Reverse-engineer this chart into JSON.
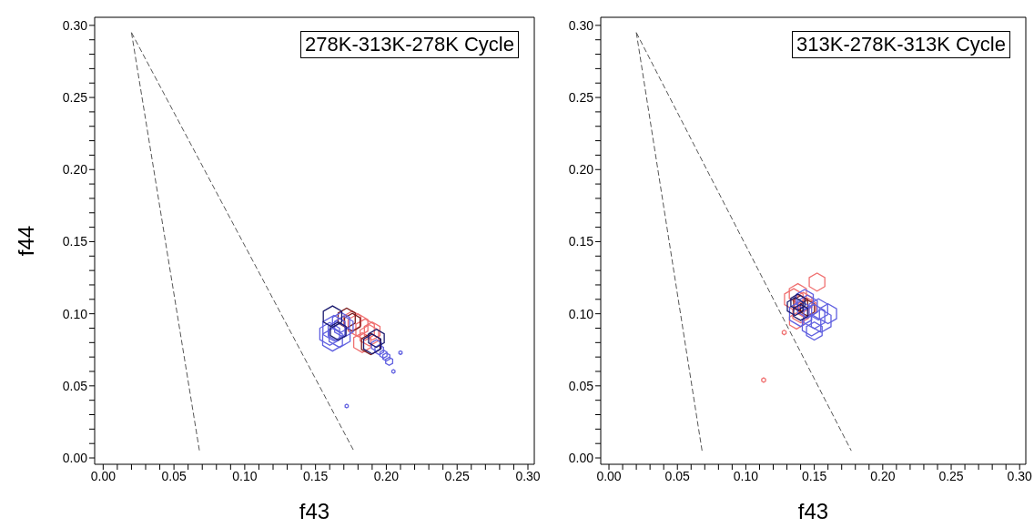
{
  "chart_data": [
    {
      "type": "bubble",
      "xlabel": "f43",
      "ylabel": "f44",
      "annotations": [
        "278K-313K-278K Cycle"
      ],
      "xlim": [
        -0.006,
        0.3045
      ],
      "ylim": [
        -0.0044,
        0.3056
      ],
      "xticks": [
        {
          "value": 0,
          "label": "0.00"
        },
        {
          "value": 0.01,
          "label": null
        },
        {
          "value": 0.02,
          "label": null
        },
        {
          "value": 0.03,
          "label": null
        },
        {
          "value": 0.04,
          "label": null
        },
        {
          "value": 0.05,
          "label": "0.05"
        },
        {
          "value": 0.06,
          "label": null
        },
        {
          "value": 0.07,
          "label": null
        },
        {
          "value": 0.08,
          "label": null
        },
        {
          "value": 0.09,
          "label": null
        },
        {
          "value": 0.1,
          "label": "0.10"
        },
        {
          "value": 0.11,
          "label": null
        },
        {
          "value": 0.12,
          "label": null
        },
        {
          "value": 0.13,
          "label": null
        },
        {
          "value": 0.14,
          "label": null
        },
        {
          "value": 0.15,
          "label": "0.15"
        },
        {
          "value": 0.16,
          "label": null
        },
        {
          "value": 0.17,
          "label": null
        },
        {
          "value": 0.18,
          "label": null
        },
        {
          "value": 0.19,
          "label": null
        },
        {
          "value": 0.2,
          "label": "0.20"
        },
        {
          "value": 0.21,
          "label": null
        },
        {
          "value": 0.22,
          "label": null
        },
        {
          "value": 0.23,
          "label": null
        },
        {
          "value": 0.24,
          "label": null
        },
        {
          "value": 0.25,
          "label": "0.25"
        },
        {
          "value": 0.26,
          "label": null
        },
        {
          "value": 0.27,
          "label": null
        },
        {
          "value": 0.28,
          "label": null
        },
        {
          "value": 0.29,
          "label": null
        },
        {
          "value": 0.3,
          "label": "0.30"
        }
      ],
      "yticks": [
        {
          "value": 0,
          "label": "0.00"
        },
        {
          "value": 0.01,
          "label": null
        },
        {
          "value": 0.02,
          "label": null
        },
        {
          "value": 0.03,
          "label": null
        },
        {
          "value": 0.04,
          "label": null
        },
        {
          "value": 0.05,
          "label": "0.05"
        },
        {
          "value": 0.06,
          "label": null
        },
        {
          "value": 0.07,
          "label": null
        },
        {
          "value": 0.08,
          "label": null
        },
        {
          "value": 0.09,
          "label": null
        },
        {
          "value": 0.1,
          "label": "0.10"
        },
        {
          "value": 0.11,
          "label": null
        },
        {
          "value": 0.12,
          "label": null
        },
        {
          "value": 0.13,
          "label": null
        },
        {
          "value": 0.14,
          "label": null
        },
        {
          "value": 0.15,
          "label": "0.15"
        },
        {
          "value": 0.16,
          "label": null
        },
        {
          "value": 0.17,
          "label": null
        },
        {
          "value": 0.18,
          "label": null
        },
        {
          "value": 0.19,
          "label": null
        },
        {
          "value": 0.2,
          "label": "0.20"
        },
        {
          "value": 0.21,
          "label": null
        },
        {
          "value": 0.22,
          "label": null
        },
        {
          "value": 0.23,
          "label": null
        },
        {
          "value": 0.24,
          "label": null
        },
        {
          "value": 0.25,
          "label": "0.25"
        },
        {
          "value": 0.26,
          "label": null
        },
        {
          "value": 0.27,
          "label": null
        },
        {
          "value": 0.28,
          "label": null
        },
        {
          "value": 0.29,
          "label": null
        },
        {
          "value": 0.3,
          "label": "0.30"
        }
      ],
      "series": [
        {
          "type": "line",
          "color": "#555555",
          "line_style": "dashed",
          "x": [
            0.02,
            0.068
          ],
          "values": [
            0.295,
            0.005
          ]
        },
        {
          "type": "line",
          "color": "#555555",
          "line_style": "dashed",
          "x": [
            0.02,
            0.177
          ],
          "values": [
            0.295,
            0.005
          ]
        },
        {
          "color": "#f07070",
          "x": [
            0.18,
            0.185,
            0.188,
            0.183,
            0.19,
            0.176
          ],
          "values": [
            0.092,
            0.089,
            0.085,
            0.08,
            0.088,
            0.095
          ],
          "sizes": [
            0.8,
            0.7,
            0.7,
            0.6,
            0.5,
            0.6
          ]
        },
        {
          "color": "#7a1a1a",
          "x": [
            0.172,
            0.189,
            0.176
          ],
          "values": [
            0.097,
            0.079,
            0.094
          ],
          "sizes": [
            0.6,
            0.7,
            0.5
          ]
        },
        {
          "color": "#6060e0",
          "x": [
            0.16,
            0.163,
            0.165,
            0.167,
            0.17,
            0.162,
            0.168,
            0.195,
            0.198,
            0.2,
            0.202,
            0.205,
            0.21,
            0.172,
            0.193
          ],
          "values": [
            0.086,
            0.09,
            0.088,
            0.085,
            0.091,
            0.082,
            0.094,
            0.075,
            0.072,
            0.07,
            0.067,
            0.06,
            0.073,
            0.036,
            0.078
          ],
          "sizes": [
            0.8,
            1,
            0.6,
            0.9,
            0.7,
            0.8,
            0.6,
            0.15,
            0.1,
            0.1,
            0.1,
            0.02,
            0.02,
            0.02,
            0.2
          ]
        },
        {
          "color": "#1a1a6e",
          "x": [
            0.162,
            0.166,
            0.193,
            0.19
          ],
          "values": [
            0.098,
            0.088,
            0.083,
            0.079
          ],
          "sizes": [
            0.7,
            0.5,
            0.5,
            0.6
          ]
        }
      ]
    },
    {
      "type": "bubble",
      "xlabel": "f43",
      "annotations": [
        "313K-278K-313K Cycle"
      ],
      "xlim": [
        -0.006,
        0.3045
      ],
      "ylim": [
        -0.0044,
        0.3056
      ],
      "xticks": [
        {
          "value": 0,
          "label": "0.00"
        },
        {
          "value": 0.01,
          "label": null
        },
        {
          "value": 0.02,
          "label": null
        },
        {
          "value": 0.03,
          "label": null
        },
        {
          "value": 0.04,
          "label": null
        },
        {
          "value": 0.05,
          "label": "0.05"
        },
        {
          "value": 0.06,
          "label": null
        },
        {
          "value": 0.07,
          "label": null
        },
        {
          "value": 0.08,
          "label": null
        },
        {
          "value": 0.09,
          "label": null
        },
        {
          "value": 0.1,
          "label": "0.10"
        },
        {
          "value": 0.11,
          "label": null
        },
        {
          "value": 0.12,
          "label": null
        },
        {
          "value": 0.13,
          "label": null
        },
        {
          "value": 0.14,
          "label": null
        },
        {
          "value": 0.15,
          "label": "0.15"
        },
        {
          "value": 0.16,
          "label": null
        },
        {
          "value": 0.17,
          "label": null
        },
        {
          "value": 0.18,
          "label": null
        },
        {
          "value": 0.19,
          "label": null
        },
        {
          "value": 0.2,
          "label": "0.20"
        },
        {
          "value": 0.21,
          "label": null
        },
        {
          "value": 0.22,
          "label": null
        },
        {
          "value": 0.23,
          "label": null
        },
        {
          "value": 0.24,
          "label": null
        },
        {
          "value": 0.25,
          "label": "0.25"
        },
        {
          "value": 0.26,
          "label": null
        },
        {
          "value": 0.27,
          "label": null
        },
        {
          "value": 0.28,
          "label": null
        },
        {
          "value": 0.29,
          "label": null
        },
        {
          "value": 0.3,
          "label": "0.30"
        }
      ],
      "yticks": [
        {
          "value": 0,
          "label": "0.00"
        },
        {
          "value": 0.01,
          "label": null
        },
        {
          "value": 0.02,
          "label": null
        },
        {
          "value": 0.03,
          "label": null
        },
        {
          "value": 0.04,
          "label": null
        },
        {
          "value": 0.05,
          "label": "0.05"
        },
        {
          "value": 0.06,
          "label": null
        },
        {
          "value": 0.07,
          "label": null
        },
        {
          "value": 0.08,
          "label": null
        },
        {
          "value": 0.09,
          "label": null
        },
        {
          "value": 0.1,
          "label": "0.10"
        },
        {
          "value": 0.11,
          "label": null
        },
        {
          "value": 0.12,
          "label": null
        },
        {
          "value": 0.13,
          "label": null
        },
        {
          "value": 0.14,
          "label": null
        },
        {
          "value": 0.15,
          "label": "0.15"
        },
        {
          "value": 0.16,
          "label": null
        },
        {
          "value": 0.17,
          "label": null
        },
        {
          "value": 0.18,
          "label": null
        },
        {
          "value": 0.19,
          "label": null
        },
        {
          "value": 0.2,
          "label": "0.20"
        },
        {
          "value": 0.21,
          "label": null
        },
        {
          "value": 0.22,
          "label": null
        },
        {
          "value": 0.23,
          "label": null
        },
        {
          "value": 0.24,
          "label": null
        },
        {
          "value": 0.25,
          "label": "0.25"
        },
        {
          "value": 0.26,
          "label": null
        },
        {
          "value": 0.27,
          "label": null
        },
        {
          "value": 0.28,
          "label": null
        },
        {
          "value": 0.29,
          "label": null
        },
        {
          "value": 0.3,
          "label": "0.30"
        }
      ],
      "series": [
        {
          "type": "line",
          "color": "#555555",
          "line_style": "dashed",
          "x": [
            0.02,
            0.068
          ],
          "values": [
            0.295,
            0.005
          ]
        },
        {
          "type": "line",
          "color": "#555555",
          "line_style": "dashed",
          "x": [
            0.02,
            0.177
          ],
          "values": [
            0.295,
            0.005
          ]
        },
        {
          "color": "#f07070",
          "x": [
            0.135,
            0.138,
            0.142,
            0.152,
            0.14,
            0.128,
            0.113,
            0.145,
            0.137
          ],
          "values": [
            0.11,
            0.114,
            0.108,
            0.122,
            0.1,
            0.087,
            0.054,
            0.104,
            0.095
          ],
          "sizes": [
            0.7,
            0.6,
            0.6,
            0.5,
            0.5,
            0.03,
            0.03,
            0.6,
            0.4
          ]
        },
        {
          "color": "#7a1a1a",
          "x": [
            0.14,
            0.145
          ],
          "values": [
            0.107,
            0.104
          ],
          "sizes": [
            0.4,
            0.4
          ]
        },
        {
          "color": "#6060e0",
          "x": [
            0.14,
            0.145,
            0.15,
            0.155,
            0.148,
            0.153,
            0.16,
            0.143,
            0.15
          ],
          "values": [
            0.1,
            0.105,
            0.098,
            0.095,
            0.092,
            0.103,
            0.1,
            0.11,
            0.088
          ],
          "sizes": [
            1,
            0.8,
            0.9,
            0.8,
            0.7,
            0.7,
            0.6,
            0.6,
            0.5
          ]
        },
        {
          "color": "#1a1a6e",
          "x": [
            0.136,
            0.14,
            0.138
          ],
          "values": [
            0.105,
            0.101,
            0.108
          ],
          "sizes": [
            0.5,
            0.4,
            0.4
          ]
        }
      ]
    }
  ]
}
